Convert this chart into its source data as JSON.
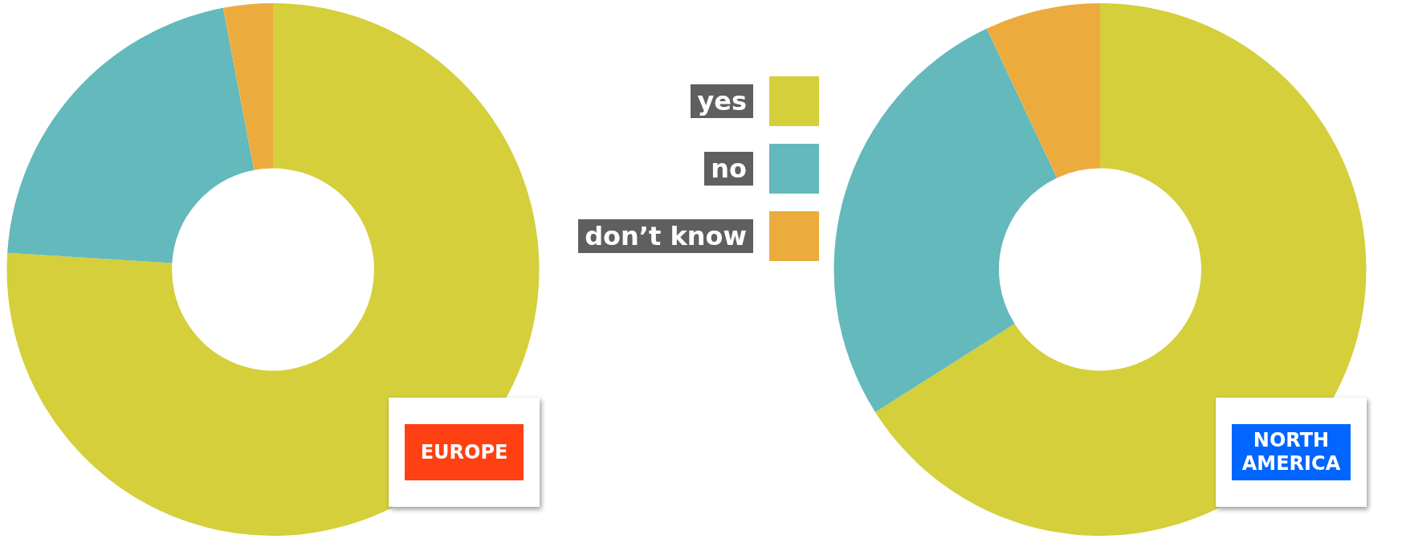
{
  "chart_data": [
    {
      "type": "donut",
      "title": "EUROPE",
      "categories": [
        "yes",
        "no",
        "don’t know"
      ],
      "values": [
        76,
        21,
        3
      ],
      "colors": [
        "#d4cf3a",
        "#63b9bc",
        "#ecac3d"
      ],
      "legend": "right"
    },
    {
      "type": "donut",
      "title": "NORTH AMERICA",
      "categories": [
        null,
        null,
        null
      ],
      "values": [
        66,
        27,
        7
      ],
      "colors": [
        "#d4cf3a",
        "#63b9bc",
        "#ecac3d"
      ]
    }
  ]
}
